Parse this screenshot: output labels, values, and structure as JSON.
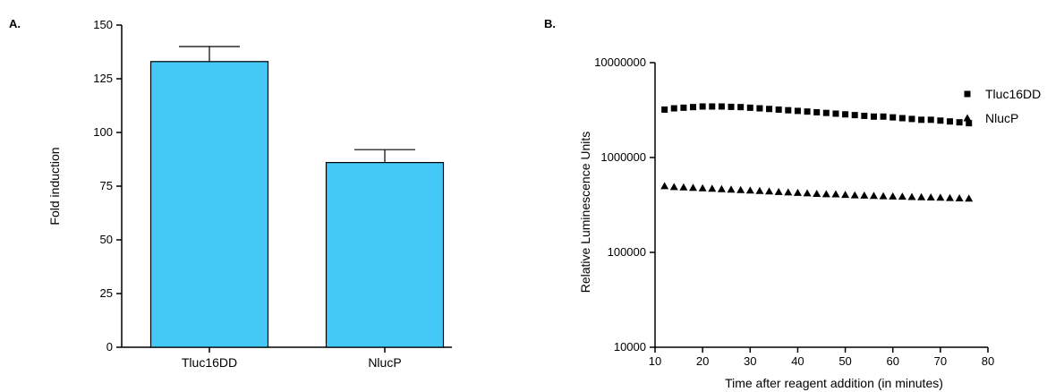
{
  "panels": {
    "a_label": "A.",
    "b_label": "B."
  },
  "chart_data": [
    {
      "type": "bar",
      "categories": [
        "Tluc16DD",
        "NlucP"
      ],
      "values": [
        133,
        86
      ],
      "errors": [
        7,
        6
      ],
      "ylabel": "Fold induction",
      "xlabel": "",
      "ylim": [
        0,
        150
      ],
      "yticks": [
        0,
        25,
        50,
        75,
        100,
        125,
        150
      ],
      "bar_color": "#44c8f5",
      "grid": false
    },
    {
      "type": "scatter",
      "xlabel": "Time after reagent addition (in minutes)",
      "ylabel": "Relative Luminescence Units",
      "xlim": [
        10,
        80
      ],
      "xticks": [
        10,
        20,
        30,
        40,
        50,
        60,
        70,
        80
      ],
      "ylim": [
        10000,
        10000000
      ],
      "yscale": "log",
      "yticks": [
        10000,
        100000,
        1000000,
        10000000
      ],
      "ytick_labels": [
        "10000",
        "100000",
        "1000000",
        "10000000"
      ],
      "legend_position": "top-right",
      "grid": false,
      "x": [
        12,
        14,
        16,
        18,
        20,
        22,
        24,
        26,
        28,
        30,
        32,
        34,
        36,
        38,
        40,
        42,
        44,
        46,
        48,
        50,
        52,
        54,
        56,
        58,
        60,
        62,
        64,
        66,
        68,
        70,
        72,
        74,
        76
      ],
      "series": [
        {
          "name": "Tluc16DD",
          "marker": "square",
          "color": "#000000",
          "values": [
            3200000,
            3300000,
            3350000,
            3400000,
            3450000,
            3450000,
            3450000,
            3420000,
            3400000,
            3350000,
            3300000,
            3250000,
            3200000,
            3150000,
            3100000,
            3050000,
            3000000,
            2950000,
            2900000,
            2850000,
            2800000,
            2750000,
            2700000,
            2700000,
            2650000,
            2600000,
            2550000,
            2500000,
            2500000,
            2450000,
            2400000,
            2350000,
            2300000
          ]
        },
        {
          "name": "NlucP",
          "marker": "triangle",
          "color": "#000000",
          "values": [
            500000,
            490000,
            485000,
            480000,
            475000,
            470000,
            465000,
            460000,
            455000,
            450000,
            445000,
            440000,
            435000,
            430000,
            425000,
            420000,
            415000,
            412000,
            410000,
            405000,
            400000,
            398000,
            395000,
            392000,
            390000,
            388000,
            385000,
            382000,
            380000,
            378000,
            375000,
            372000,
            370000
          ]
        }
      ]
    }
  ]
}
